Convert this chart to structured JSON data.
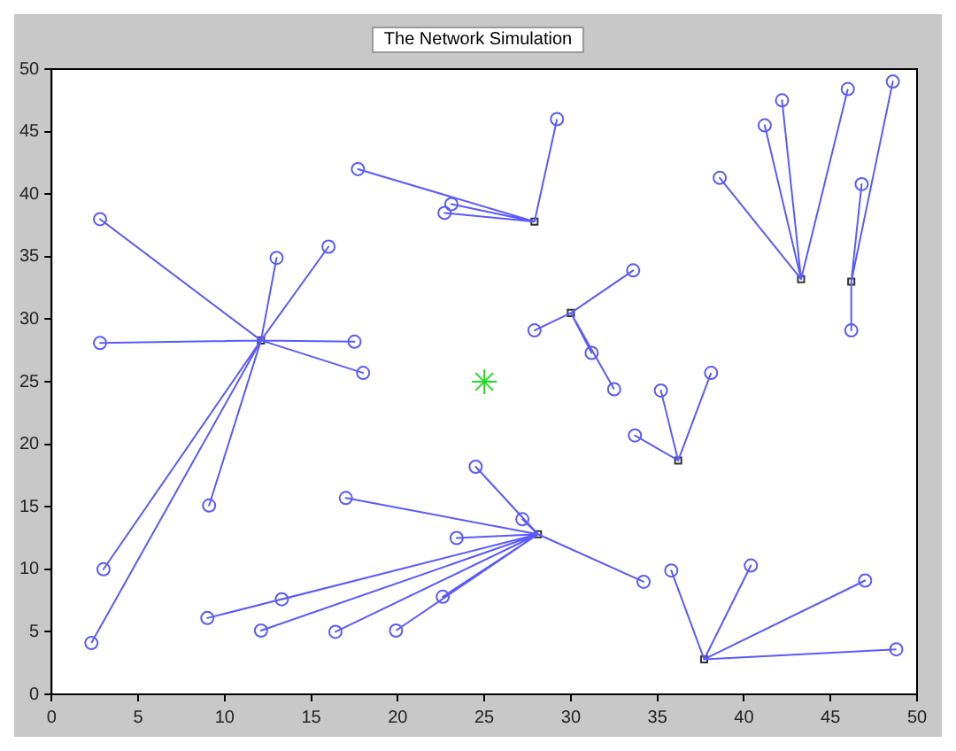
{
  "chart_data": {
    "type": "scatter",
    "title": "The Network Simulation",
    "xlim": [
      0,
      50
    ],
    "ylim": [
      0,
      50
    ],
    "xticks": [
      0,
      5,
      10,
      15,
      20,
      25,
      30,
      35,
      40,
      45,
      50
    ],
    "yticks": [
      0,
      5,
      10,
      15,
      20,
      25,
      30,
      35,
      40,
      45,
      50
    ],
    "grid": false,
    "legend": false,
    "series": [
      {
        "type": "line",
        "marker": "none",
        "color": "#5a5aff",
        "x": [
          12.1,
          2.8,
          12.1,
          2.8,
          12.1,
          13.0,
          12.1,
          16.0,
          12.1,
          17.5,
          12.1,
          18.0,
          12.1,
          9.1,
          12.1,
          3.0,
          12.1,
          2.3
        ],
        "values": [
          28.3,
          38.0,
          28.3,
          28.1,
          28.3,
          34.9,
          28.3,
          35.8,
          28.3,
          28.2,
          28.3,
          25.7,
          28.3,
          15.1,
          28.3,
          10.0,
          28.3,
          4.1
        ]
      },
      {
        "type": "line",
        "marker": "none",
        "color": "#5a5aff",
        "x": [
          27.9,
          17.7,
          27.9,
          23.1,
          27.9,
          22.7,
          27.9,
          29.2
        ],
        "values": [
          37.8,
          42.0,
          37.8,
          39.2,
          37.8,
          38.5,
          37.8,
          46.0
        ]
      },
      {
        "type": "line",
        "marker": "none",
        "color": "#5a5aff",
        "x": [
          43.3,
          38.6,
          43.3,
          41.2,
          43.3,
          42.2,
          43.3,
          46.0
        ],
        "values": [
          33.2,
          41.3,
          33.2,
          45.5,
          33.2,
          47.5,
          33.2,
          48.4
        ]
      },
      {
        "type": "line",
        "marker": "none",
        "color": "#5a5aff",
        "x": [
          46.2,
          48.6,
          46.2,
          46.8,
          46.2,
          46.2
        ],
        "values": [
          33.0,
          49.0,
          33.0,
          40.8,
          33.0,
          29.1
        ]
      },
      {
        "type": "line",
        "marker": "none",
        "color": "#5a5aff",
        "x": [
          30.0,
          33.6,
          30.0,
          27.9,
          30.0,
          31.2,
          30.0,
          32.5
        ],
        "values": [
          30.5,
          33.9,
          30.5,
          29.1,
          30.5,
          27.3,
          30.5,
          24.4
        ]
      },
      {
        "type": "line",
        "marker": "none",
        "color": "#5a5aff",
        "x": [
          36.2,
          33.7,
          36.2,
          35.2,
          36.2,
          38.1
        ],
        "values": [
          18.7,
          20.7,
          18.7,
          24.3,
          18.7,
          25.7
        ]
      },
      {
        "type": "line",
        "marker": "none",
        "color": "#5a5aff",
        "x": [
          28.1,
          24.5,
          28.1,
          27.2,
          28.1,
          23.4,
          28.1,
          34.2,
          28.1,
          22.6,
          28.1,
          17.0,
          28.1,
          13.3,
          28.1,
          9.0,
          28.1,
          12.1,
          28.1,
          16.4,
          28.1,
          19.9
        ],
        "values": [
          12.8,
          18.2,
          12.8,
          14.0,
          12.8,
          12.5,
          12.8,
          9.0,
          12.8,
          7.8,
          12.8,
          15.7,
          12.8,
          7.6,
          12.8,
          6.1,
          12.8,
          5.1,
          12.8,
          5.0,
          12.8,
          5.1
        ]
      },
      {
        "type": "line",
        "marker": "none",
        "color": "#5a5aff",
        "x": [
          37.7,
          35.8,
          37.7,
          40.4,
          37.7,
          47.0,
          37.7,
          48.8
        ],
        "values": [
          2.8,
          9.9,
          2.8,
          10.3,
          2.8,
          9.1,
          2.8,
          3.6
        ]
      },
      {
        "type": "scatter",
        "marker": "circle",
        "color": "#5a5aff",
        "x": [
          2.8,
          2.8,
          13.0,
          16.0,
          17.5,
          18.0,
          9.1,
          3.0,
          2.3,
          17.7,
          23.1,
          22.7,
          29.2,
          38.6,
          41.2,
          42.2,
          46.0,
          48.6,
          46.8,
          46.2,
          33.6,
          27.9,
          31.2,
          32.5,
          33.7,
          35.2,
          38.1,
          24.5,
          27.2,
          23.4,
          34.2,
          22.6,
          17.0,
          13.3,
          9.0,
          12.1,
          16.4,
          19.9,
          35.8,
          40.4,
          47.0,
          48.8
        ],
        "values": [
          38.0,
          28.1,
          34.9,
          35.8,
          28.2,
          25.7,
          15.1,
          10.0,
          4.1,
          42.0,
          39.2,
          38.5,
          46.0,
          41.3,
          45.5,
          47.5,
          48.4,
          49.0,
          40.8,
          29.1,
          33.9,
          29.1,
          27.3,
          24.4,
          20.7,
          24.3,
          25.7,
          18.2,
          14.0,
          12.5,
          9.0,
          7.8,
          15.7,
          7.6,
          6.1,
          5.1,
          5.0,
          5.1,
          9.9,
          10.3,
          9.1,
          3.6
        ]
      },
      {
        "type": "scatter",
        "marker": "square",
        "color": "#333333",
        "x": [
          12.1,
          27.9,
          43.3,
          46.2,
          30.0,
          36.2,
          28.1,
          37.7
        ],
        "values": [
          28.3,
          37.8,
          33.2,
          33.0,
          30.5,
          18.7,
          12.8,
          2.8
        ]
      },
      {
        "type": "scatter",
        "marker": "cross",
        "color": "#22dd22",
        "x": [
          25
        ],
        "values": [
          25
        ]
      }
    ]
  }
}
